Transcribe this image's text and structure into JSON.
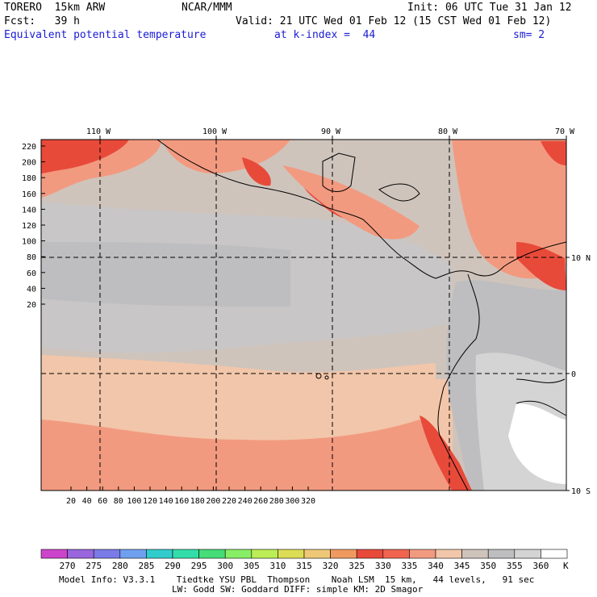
{
  "header": {
    "model": "TORERO  15km ARW",
    "org": "NCAR/MMM",
    "init": "Init: 06 UTC Tue 31 Jan 12",
    "fcst": "Fcst:   39 h",
    "valid": "Valid: 21 UTC Wed 01 Feb 12 (15 CST Wed 01 Feb 12)",
    "field": "Equivalent potential temperature",
    "level": "at k-index =  44",
    "smooth": "sm= 2"
  },
  "map": {
    "lon_labels": [
      "110 W",
      "100 W",
      "90 W",
      "80 W",
      "70 W"
    ],
    "lat_labels": [
      "10 N",
      "0",
      "10 S"
    ],
    "y_ticks": [
      "220",
      "200",
      "180",
      "160",
      "140",
      "120",
      "100",
      "80",
      "60",
      "40",
      "20"
    ],
    "x_ticks": [
      "20",
      "40",
      "60",
      "80",
      "100",
      "120",
      "140",
      "160",
      "180",
      "200",
      "220",
      "240",
      "260",
      "280",
      "300",
      "320"
    ]
  },
  "colorbar": {
    "values": [
      "270",
      "275",
      "280",
      "285",
      "290",
      "295",
      "300",
      "305",
      "310",
      "315",
      "320",
      "325",
      "330",
      "335",
      "340",
      "345",
      "350",
      "355",
      "360"
    ],
    "unit": "K",
    "colors": [
      "#cc44cc",
      "#9966dd",
      "#7a7ae8",
      "#6fa0f0",
      "#33cccc",
      "#33ddaa",
      "#44dd77",
      "#88ee66",
      "#bbee55",
      "#dddd55",
      "#eec877",
      "#f09a60",
      "#e84a3a",
      "#f06450",
      "#f29a80",
      "#f2c6aa",
      "#cfc4bc",
      "#bebec0",
      "#d4d4d4",
      "#ffffff"
    ]
  },
  "footer": {
    "line1": "Model Info: V3.3.1    Tiedtke YSU PBL  Thompson    Noah LSM  15 km,   44 levels,   91 sec",
    "line2": "LW: Godd SW: Goddard DIFF: simple KM: 2D Smagor"
  }
}
